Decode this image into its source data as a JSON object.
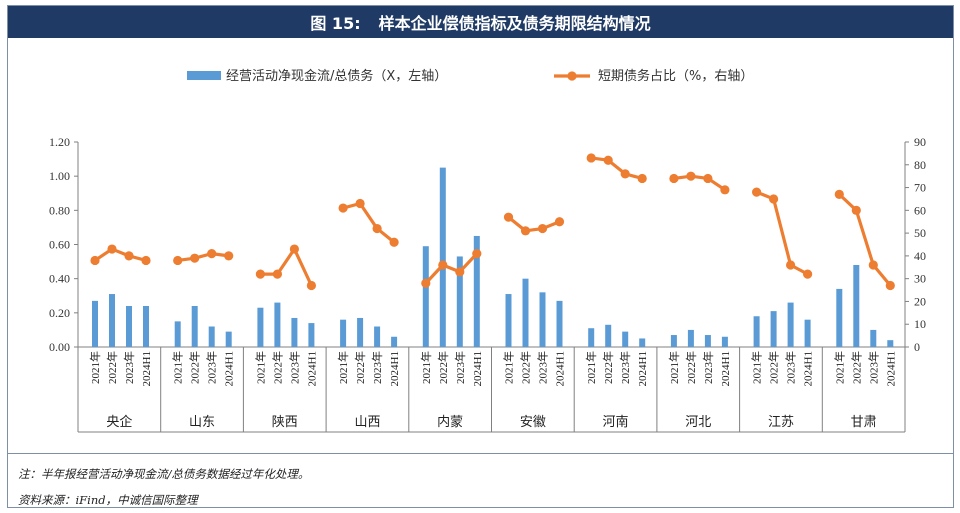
{
  "figure": {
    "number": "图 15:",
    "title": "样本企业偿债指标及债务期限结构情况"
  },
  "notes": {
    "note": "注：半年报经营活动净现金流/总债务数据经过年化处理。",
    "source": "资料来源：iFind，中诚信国际整理"
  },
  "colors": {
    "title_bg": "#1f3a64",
    "bar": "#5b9bd5",
    "line": "#ed7d31"
  },
  "chart_data": {
    "type": "bar+line",
    "legend_position": "top",
    "series": [
      {
        "name": "经营活动净现金流/总债务（X，左轴）",
        "type": "bar",
        "axis": "left",
        "groups": [
          [
            0.27,
            0.31,
            0.24,
            0.24
          ],
          [
            0.15,
            0.24,
            0.12,
            0.09
          ],
          [
            0.23,
            0.26,
            0.17,
            0.14
          ],
          [
            0.16,
            0.17,
            0.12,
            0.06
          ],
          [
            0.59,
            1.05,
            0.53,
            0.65
          ],
          [
            0.31,
            0.4,
            0.32,
            0.27
          ],
          [
            0.11,
            0.13,
            0.09,
            0.05
          ],
          [
            0.07,
            0.1,
            0.07,
            0.06
          ],
          [
            0.18,
            0.21,
            0.26,
            0.16
          ],
          [
            0.34,
            0.48,
            0.1,
            0.04
          ]
        ]
      },
      {
        "name": "短期债务占比（%，右轴）",
        "type": "line",
        "axis": "right",
        "groups": [
          [
            38,
            43,
            40,
            38
          ],
          [
            38,
            39,
            41,
            40
          ],
          [
            32,
            32,
            43,
            27
          ],
          [
            61,
            63,
            52,
            46
          ],
          [
            28,
            36,
            33,
            41
          ],
          [
            57,
            51,
            52,
            55
          ],
          [
            83,
            82,
            76,
            74
          ],
          [
            74,
            75,
            74,
            69
          ],
          [
            68,
            65,
            36,
            32
          ],
          [
            67,
            60,
            36,
            27
          ]
        ]
      }
    ],
    "group_categories": [
      "央企",
      "山东",
      "陕西",
      "山西",
      "内蒙",
      "安徽",
      "河南",
      "河北",
      "江苏",
      "甘肃"
    ],
    "period_labels": [
      "2021年",
      "2022年",
      "2023年",
      "2024H1"
    ],
    "y_left": {
      "min": 0,
      "max": 1.2,
      "ticks": [
        "0.00",
        "0.20",
        "0.40",
        "0.60",
        "0.80",
        "1.00",
        "1.20"
      ]
    },
    "y_right": {
      "min": 0,
      "max": 90,
      "ticks": [
        "0",
        "10",
        "20",
        "30",
        "40",
        "50",
        "60",
        "70",
        "80",
        "90"
      ]
    },
    "grid": false
  }
}
